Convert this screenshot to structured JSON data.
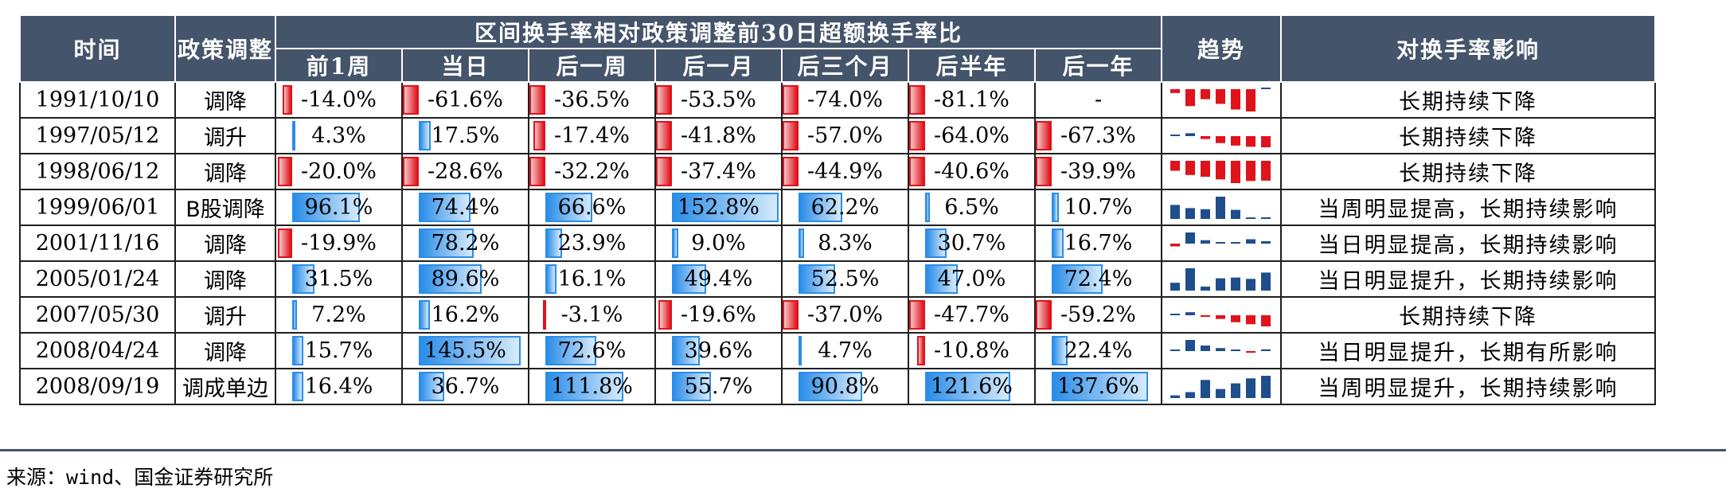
{
  "headers": {
    "time": "时间",
    "policy": "政策调整",
    "group": "区间换手率相对政策调整前30日超额换手率比",
    "periods": [
      "前1周",
      "当日",
      "后一周",
      "后一月",
      "后三个月",
      "后半年",
      "后一年"
    ],
    "trend": "趋势",
    "impact": "对换手率影响"
  },
  "rows": [
    {
      "date": "1991/10/10",
      "policy": "调降",
      "values": [
        -14.0,
        -61.6,
        -36.5,
        -53.5,
        -74.0,
        -81.1,
        null
      ],
      "labels": [
        "-14.0%",
        "-61.6%",
        "-36.5%",
        "-53.5%",
        "-74.0%",
        "-81.1%",
        "-"
      ],
      "impact": "长期持续下降"
    },
    {
      "date": "1997/05/12",
      "policy": "调升",
      "values": [
        4.3,
        17.5,
        -17.4,
        -41.8,
        -57.0,
        -64.0,
        -67.3
      ],
      "labels": [
        "4.3%",
        "17.5%",
        "-17.4%",
        "-41.8%",
        "-57.0%",
        "-64.0%",
        "-67.3%"
      ],
      "impact": "长期持续下降"
    },
    {
      "date": "1998/06/12",
      "policy": "调降",
      "values": [
        -20.0,
        -28.6,
        -32.2,
        -37.4,
        -44.9,
        -40.6,
        -39.9
      ],
      "labels": [
        "-20.0%",
        "-28.6%",
        "-32.2%",
        "-37.4%",
        "-44.9%",
        "-40.6%",
        "-39.9%"
      ],
      "impact": "长期持续下降"
    },
    {
      "date": "1999/06/01",
      "policy": "B股调降",
      "values": [
        96.1,
        74.4,
        66.6,
        152.8,
        62.2,
        6.5,
        10.7
      ],
      "labels": [
        "96.1%",
        "74.4%",
        "66.6%",
        "152.8%",
        "62.2%",
        "6.5%",
        "10.7%"
      ],
      "impact": "当周明显提高，长期持续影响"
    },
    {
      "date": "2001/11/16",
      "policy": "调降",
      "values": [
        -19.9,
        78.2,
        23.9,
        9.0,
        8.3,
        30.7,
        16.7
      ],
      "labels": [
        "-19.9%",
        "78.2%",
        "23.9%",
        "9.0%",
        "8.3%",
        "30.7%",
        "16.7%"
      ],
      "impact": "当日明显提高，长期持续影响"
    },
    {
      "date": "2005/01/24",
      "policy": "调降",
      "values": [
        31.5,
        89.6,
        16.1,
        49.4,
        52.5,
        47.0,
        72.4
      ],
      "labels": [
        "31.5%",
        "89.6%",
        "16.1%",
        "49.4%",
        "52.5%",
        "47.0%",
        "72.4%"
      ],
      "impact": "当日明显提升，长期持续影响"
    },
    {
      "date": "2007/05/30",
      "policy": "调升",
      "values": [
        7.2,
        16.2,
        -3.1,
        -19.6,
        -37.0,
        -47.7,
        -59.2
      ],
      "labels": [
        "7.2%",
        "16.2%",
        "-3.1%",
        "-19.6%",
        "-37.0%",
        "-47.7%",
        "-59.2%"
      ],
      "impact": "长期持续下降"
    },
    {
      "date": "2008/04/24",
      "policy": "调降",
      "values": [
        15.7,
        145.5,
        72.6,
        39.6,
        4.7,
        -10.8,
        22.4
      ],
      "labels": [
        "15.7%",
        "145.5%",
        "72.6%",
        "39.6%",
        "4.7%",
        "-10.8%",
        "22.4%"
      ],
      "impact": "当日明显提升，长期有所影响"
    },
    {
      "date": "2008/09/19",
      "policy": "调成单边",
      "values": [
        16.4,
        36.7,
        111.8,
        55.7,
        90.8,
        121.6,
        137.6
      ],
      "labels": [
        "16.4%",
        "36.7%",
        "111.8%",
        "55.7%",
        "90.8%",
        "121.6%",
        "137.6%"
      ],
      "impact": "当周明显提升，长期持续影响"
    }
  ],
  "colors": {
    "header_bg": "#44546a",
    "negative": "#e0121a",
    "positive": "#2a8de8"
  },
  "source": "来源：wind、国金证券研究所"
}
